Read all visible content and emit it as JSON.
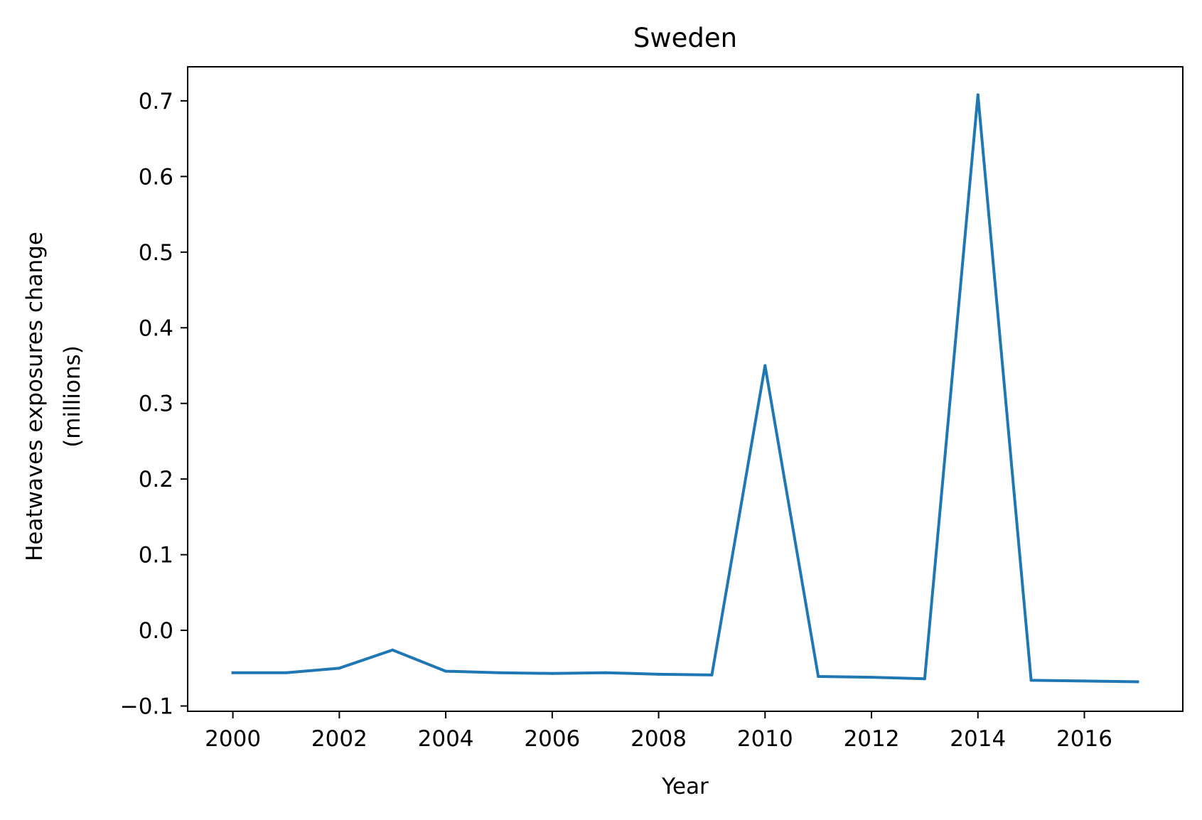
{
  "chart_data": {
    "type": "line",
    "title": "Sweden",
    "xlabel": "Year",
    "ylabel_lines": [
      "Heatwaves exposures change",
      "(millions)"
    ],
    "xlim": [
      1999.15,
      2017.85
    ],
    "ylim": [
      -0.107,
      0.745
    ],
    "x_ticks": [
      2000,
      2002,
      2004,
      2006,
      2008,
      2010,
      2012,
      2014,
      2016
    ],
    "x_tick_labels": [
      "2000",
      "2002",
      "2004",
      "2006",
      "2008",
      "2010",
      "2012",
      "2014",
      "2016"
    ],
    "y_ticks": [
      -0.1,
      0.0,
      0.1,
      0.2,
      0.3,
      0.4,
      0.5,
      0.6,
      0.7
    ],
    "y_tick_labels": [
      "−0.1",
      "0.0",
      "0.1",
      "0.2",
      "0.3",
      "0.4",
      "0.5",
      "0.6",
      "0.7"
    ],
    "grid": false,
    "series": [
      {
        "color": "#1f77b4",
        "x": [
          2000,
          2001,
          2002,
          2003,
          2004,
          2005,
          2006,
          2007,
          2008,
          2009,
          2010,
          2011,
          2012,
          2013,
          2014,
          2015,
          2016,
          2017
        ],
        "values": [
          -0.056,
          -0.056,
          -0.05,
          -0.026,
          -0.054,
          -0.056,
          -0.057,
          -0.056,
          -0.058,
          -0.059,
          0.35,
          -0.061,
          -0.062,
          -0.064,
          0.708,
          -0.066,
          -0.067,
          -0.068
        ]
      }
    ]
  }
}
